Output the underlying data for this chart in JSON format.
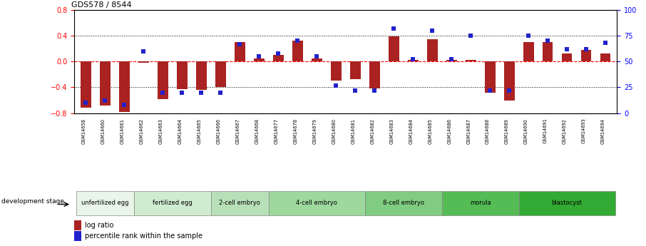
{
  "title": "GDS578 / 8544",
  "samples": [
    "GSM14658",
    "GSM14660",
    "GSM14661",
    "GSM14662",
    "GSM14663",
    "GSM14664",
    "GSM14665",
    "GSM14666",
    "GSM14667",
    "GSM14668",
    "GSM14677",
    "GSM14678",
    "GSM14679",
    "GSM14680",
    "GSM14681",
    "GSM14682",
    "GSM14683",
    "GSM14684",
    "GSM14685",
    "GSM14686",
    "GSM14687",
    "GSM14688",
    "GSM14689",
    "GSM14690",
    "GSM14691",
    "GSM14692",
    "GSM14693",
    "GSM14694"
  ],
  "log_ratio": [
    -0.72,
    -0.68,
    -0.78,
    -0.02,
    -0.58,
    -0.43,
    -0.44,
    -0.4,
    0.3,
    0.05,
    0.1,
    0.32,
    0.05,
    -0.3,
    -0.27,
    -0.42,
    0.39,
    0.03,
    0.35,
    0.03,
    0.03,
    -0.48,
    -0.6,
    0.3,
    0.3,
    0.12,
    0.18,
    0.12
  ],
  "percentile_rank": [
    10,
    12,
    8,
    60,
    20,
    20,
    20,
    20,
    67,
    55,
    58,
    70,
    55,
    27,
    22,
    22,
    82,
    52,
    80,
    52,
    75,
    22,
    22,
    75,
    70,
    62,
    62,
    68
  ],
  "stages": [
    {
      "label": "unfertilized egg",
      "start": 0,
      "end": 3,
      "color": "#e8f5e8"
    },
    {
      "label": "fertilized egg",
      "start": 3,
      "end": 7,
      "color": "#d0ecd0"
    },
    {
      "label": "2-cell embryo",
      "start": 7,
      "end": 10,
      "color": "#b8e0b8"
    },
    {
      "label": "4-cell embryo",
      "start": 10,
      "end": 15,
      "color": "#9dd89d"
    },
    {
      "label": "8-cell embryo",
      "start": 15,
      "end": 19,
      "color": "#80cc80"
    },
    {
      "label": "morula",
      "start": 19,
      "end": 23,
      "color": "#55bb55"
    },
    {
      "label": "blastocyst",
      "start": 23,
      "end": 28,
      "color": "#33aa33"
    }
  ],
  "bar_color": "#aa2222",
  "dot_color": "#2222cc",
  "left_ylim": [
    -0.8,
    0.8
  ],
  "right_ylim": [
    0,
    100
  ],
  "left_yticks": [
    -0.8,
    -0.4,
    0.0,
    0.4,
    0.8
  ],
  "right_yticks": [
    0,
    25,
    50,
    75,
    100
  ],
  "dotted_lines": [
    -0.4,
    0.4
  ],
  "xtick_bg": "#d8d8d8"
}
